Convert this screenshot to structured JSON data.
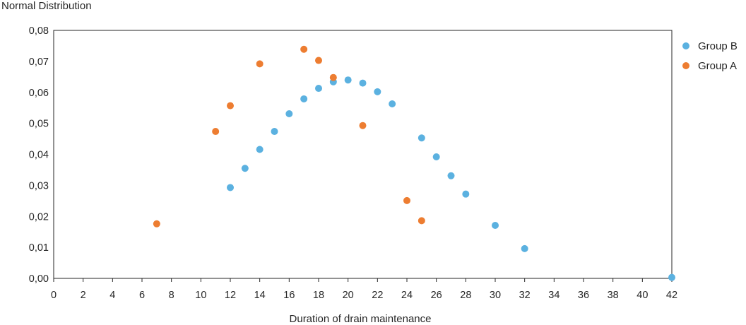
{
  "chart_data": {
    "type": "scatter",
    "title": "",
    "ylabel": "Normal Distribution",
    "xlabel": "Duration of drain maintenance",
    "xlim": [
      0,
      42
    ],
    "ylim": [
      0,
      0.08
    ],
    "x_ticks": [
      "0",
      "2",
      "4",
      "6",
      "8",
      "10",
      "12",
      "14",
      "16",
      "18",
      "20",
      "22",
      "24",
      "26",
      "28",
      "30",
      "32",
      "34",
      "36",
      "38",
      "40",
      "42"
    ],
    "y_ticks": [
      "0,00",
      "0,01",
      "0,02",
      "0,03",
      "0,04",
      "0,05",
      "0,06",
      "0,07",
      "0,08"
    ],
    "grid": false,
    "legend_position": "right",
    "series": [
      {
        "name": "Group B",
        "color": "#5BB1E0",
        "points": [
          [
            12,
            0.0293
          ],
          [
            13,
            0.0355
          ],
          [
            14,
            0.0416
          ],
          [
            15,
            0.0474
          ],
          [
            16,
            0.0531
          ],
          [
            17,
            0.0579
          ],
          [
            18,
            0.0613
          ],
          [
            19,
            0.0634
          ],
          [
            20,
            0.064
          ],
          [
            21,
            0.063
          ],
          [
            22,
            0.0602
          ],
          [
            23,
            0.0563
          ],
          [
            25,
            0.0453
          ],
          [
            26,
            0.0392
          ],
          [
            27,
            0.0331
          ],
          [
            28,
            0.0272
          ],
          [
            30,
            0.0171
          ],
          [
            32,
            0.0096
          ],
          [
            42,
            0.0003
          ]
        ]
      },
      {
        "name": "Group A",
        "color": "#ED7D31",
        "points": [
          [
            7,
            0.0176
          ],
          [
            11,
            0.0474
          ],
          [
            12,
            0.0557
          ],
          [
            14,
            0.0692
          ],
          [
            17,
            0.0739
          ],
          [
            18,
            0.0703
          ],
          [
            19,
            0.0648
          ],
          [
            21,
            0.0493
          ],
          [
            24,
            0.0251
          ],
          [
            25,
            0.0186
          ]
        ]
      }
    ]
  }
}
